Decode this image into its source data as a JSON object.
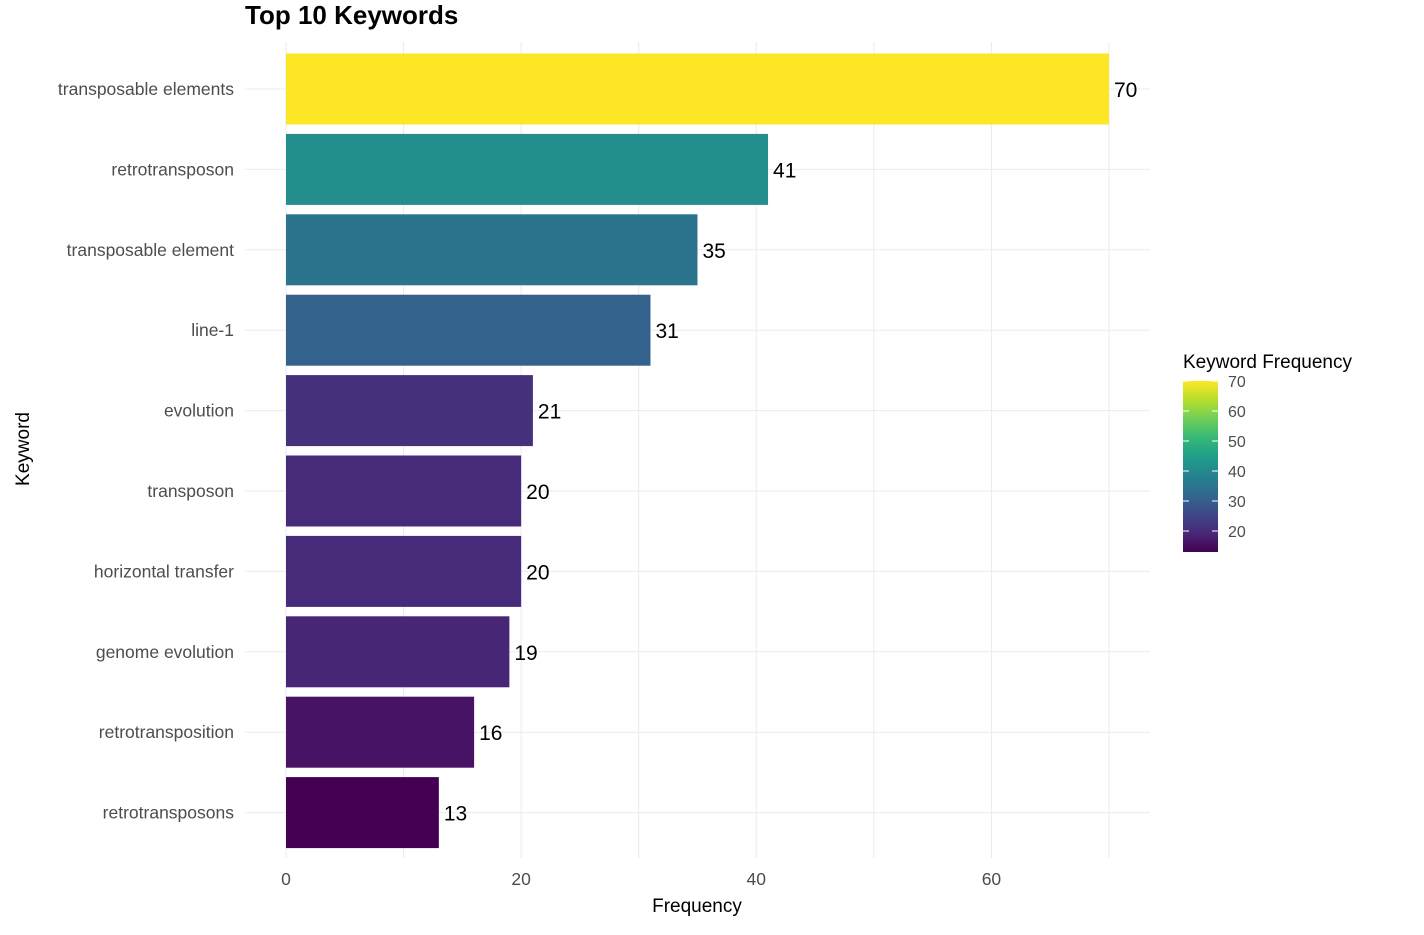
{
  "chart_data": {
    "type": "bar",
    "orientation": "horizontal",
    "title": "Top 10 Keywords",
    "xlabel": "Frequency",
    "ylabel": "Keyword",
    "categories": [
      "transposable elements",
      "retrotransposon",
      "transposable element",
      "line-1",
      "evolution",
      "transposon",
      "horizontal transfer",
      "genome evolution",
      "retrotransposition",
      "retrotransposons"
    ],
    "values": [
      70,
      41,
      35,
      31,
      21,
      20,
      20,
      19,
      16,
      13
    ],
    "xlim": [
      0,
      73.5
    ],
    "xticks": [
      0,
      20,
      40,
      60
    ],
    "grid": true,
    "legend": {
      "title": "Keyword Frequency",
      "placement": "right",
      "range": [
        13,
        70
      ],
      "ticks": [
        70,
        60,
        50,
        40,
        30,
        20
      ],
      "colormap": "viridis"
    },
    "colors": {
      "grid": "#ebebeb",
      "axis_text": "#4d4d4d",
      "title_text": "#000000"
    }
  }
}
